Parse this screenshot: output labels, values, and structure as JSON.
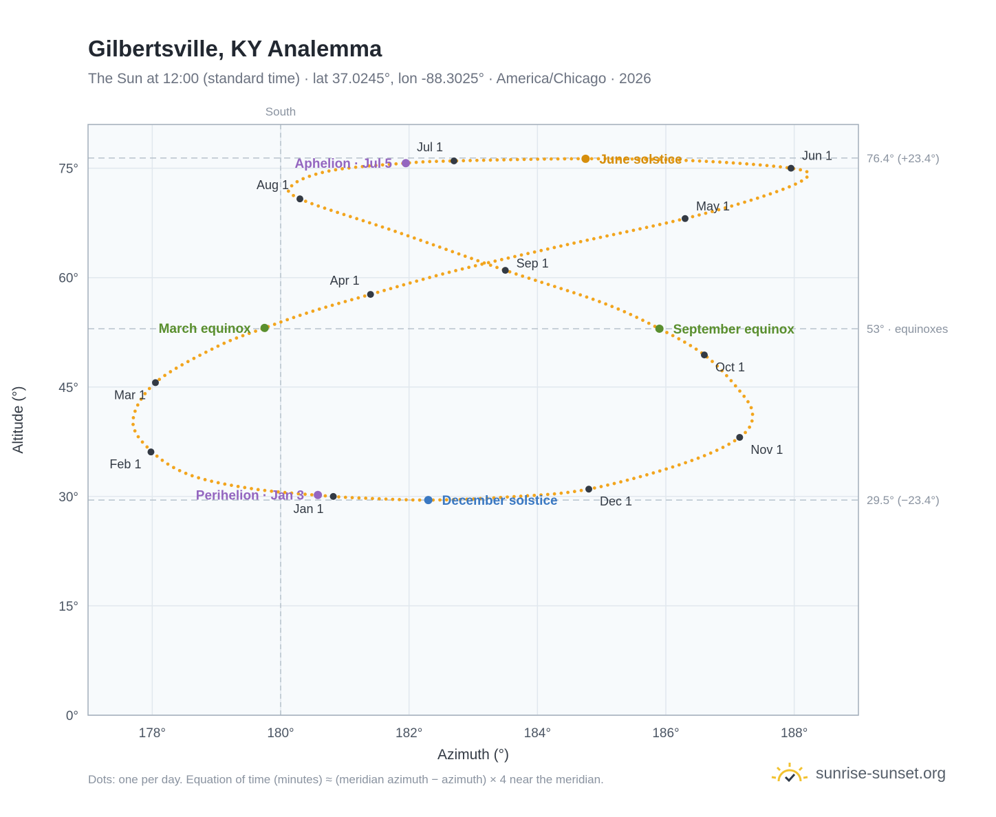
{
  "header": {
    "title": "Gilbertsville, KY Analemma",
    "subtitle": "The Sun at 12:00 (standard time) · lat 37.0245°, lon -88.3025° · America/Chicago · 2026"
  },
  "footer": {
    "note": "Dots: one per day. Equation of time (minutes) ≈ (meridian azimuth − azimuth) × 4 near the meridian.",
    "brand": "sunrise-sunset.org"
  },
  "colors": {
    "path": "#f2a51e",
    "month_dot": "#333a44",
    "solstice_june": "#d68e0c",
    "solstice_december": "#3a78c2",
    "equinox": "#5a8f2e",
    "apsis": "#9466c0",
    "plot_bg": "#f7fafc",
    "grid": "#e1e8ee",
    "frame": "#a2adba",
    "ref_line": "#b7c2cc"
  },
  "chart_data": {
    "type": "scatter",
    "xlabel": "Azimuth (°)",
    "ylabel": "Altitude (°)",
    "xlim": [
      177,
      189
    ],
    "ylim": [
      0,
      81
    ],
    "xticks": [
      178,
      180,
      182,
      184,
      186,
      188
    ],
    "xtick_labels": [
      "178°",
      "180°",
      "182°",
      "184°",
      "186°",
      "188°"
    ],
    "yticks": [
      0,
      15,
      30,
      45,
      60,
      75
    ],
    "ytick_labels": [
      "0°",
      "15°",
      "30°",
      "45°",
      "60°",
      "75°"
    ],
    "grid": true,
    "meridian": {
      "azimuth": 180,
      "label": "South"
    },
    "reference_lines": [
      {
        "altitude": 76.4,
        "label": "76.4° (+23.4°)"
      },
      {
        "altitude": 53,
        "label": "53° · equinoxes"
      },
      {
        "altitude": 29.5,
        "label": "29.5° (−23.4°)"
      }
    ],
    "path_series": {
      "name": "daily sun position",
      "points": [
        [
          180.8,
          30.0
        ],
        [
          179.6,
          31.0
        ],
        [
          178.6,
          32.9
        ],
        [
          178.0,
          36.1
        ],
        [
          177.7,
          40.3
        ],
        [
          178.05,
          45.6
        ],
        [
          179.0,
          50.5
        ],
        [
          179.75,
          53.1
        ],
        [
          180.5,
          55.4
        ],
        [
          181.4,
          57.7
        ],
        [
          182.7,
          60.9
        ],
        [
          184.4,
          64.4
        ],
        [
          186.3,
          68.1
        ],
        [
          187.6,
          71.4
        ],
        [
          188.2,
          73.8
        ],
        [
          187.95,
          75.0
        ],
        [
          186.5,
          76.0
        ],
        [
          184.75,
          76.3
        ],
        [
          182.7,
          76.0
        ],
        [
          181.95,
          75.7
        ],
        [
          180.8,
          74.7
        ],
        [
          180.2,
          72.8
        ],
        [
          180.3,
          70.8
        ],
        [
          181.8,
          66.3
        ],
        [
          183.5,
          61.0
        ],
        [
          185.0,
          56.6
        ],
        [
          185.9,
          53.0
        ],
        [
          186.6,
          49.4
        ],
        [
          187.1,
          45.0
        ],
        [
          187.35,
          41.4
        ],
        [
          187.15,
          38.1
        ],
        [
          186.3,
          34.6
        ],
        [
          184.8,
          31.0
        ],
        [
          183.5,
          29.9
        ],
        [
          182.3,
          29.5
        ],
        [
          181.2,
          29.8
        ],
        [
          180.8,
          30.0
        ]
      ]
    },
    "month_markers": [
      {
        "label": "Jan 1",
        "x": 180.82,
        "y": 30.0,
        "pos": "below-left"
      },
      {
        "label": "Feb 1",
        "x": 177.98,
        "y": 36.1,
        "pos": "below-left"
      },
      {
        "label": "Mar 1",
        "x": 178.05,
        "y": 45.6,
        "pos": "below-left"
      },
      {
        "label": "Apr 1",
        "x": 181.4,
        "y": 57.7,
        "pos": "above-left"
      },
      {
        "label": "May 1",
        "x": 186.3,
        "y": 68.1,
        "pos": "above-right"
      },
      {
        "label": "Jun 1",
        "x": 187.95,
        "y": 75.0,
        "pos": "above-right"
      },
      {
        "label": "Jul 1",
        "x": 182.7,
        "y": 76.0,
        "pos": "above-left"
      },
      {
        "label": "Aug 1",
        "x": 180.3,
        "y": 70.8,
        "pos": "above-left"
      },
      {
        "label": "Sep 1",
        "x": 183.5,
        "y": 61.0,
        "pos": "right"
      },
      {
        "label": "Oct 1",
        "x": 186.6,
        "y": 49.4,
        "pos": "below-right"
      },
      {
        "label": "Nov 1",
        "x": 187.15,
        "y": 38.1,
        "pos": "below-right"
      },
      {
        "label": "Dec 1",
        "x": 184.8,
        "y": 31.0,
        "pos": "below-right"
      }
    ],
    "events": [
      {
        "label": "June solstice",
        "x": 184.75,
        "y": 76.3,
        "color_key": "solstice_june",
        "side": "right"
      },
      {
        "label": "December solstice",
        "x": 182.3,
        "y": 29.5,
        "color_key": "solstice_december",
        "side": "right"
      },
      {
        "label": "March equinox",
        "x": 179.75,
        "y": 53.1,
        "color_key": "equinox",
        "side": "left"
      },
      {
        "label": "September equinox",
        "x": 185.9,
        "y": 53.0,
        "color_key": "equinox",
        "side": "right"
      },
      {
        "label": "Aphelion · Jul 5",
        "x": 181.95,
        "y": 75.7,
        "color_key": "apsis",
        "side": "left"
      },
      {
        "label": "Perihelion · Jan 3",
        "x": 180.58,
        "y": 30.2,
        "color_key": "apsis",
        "side": "left"
      }
    ]
  }
}
